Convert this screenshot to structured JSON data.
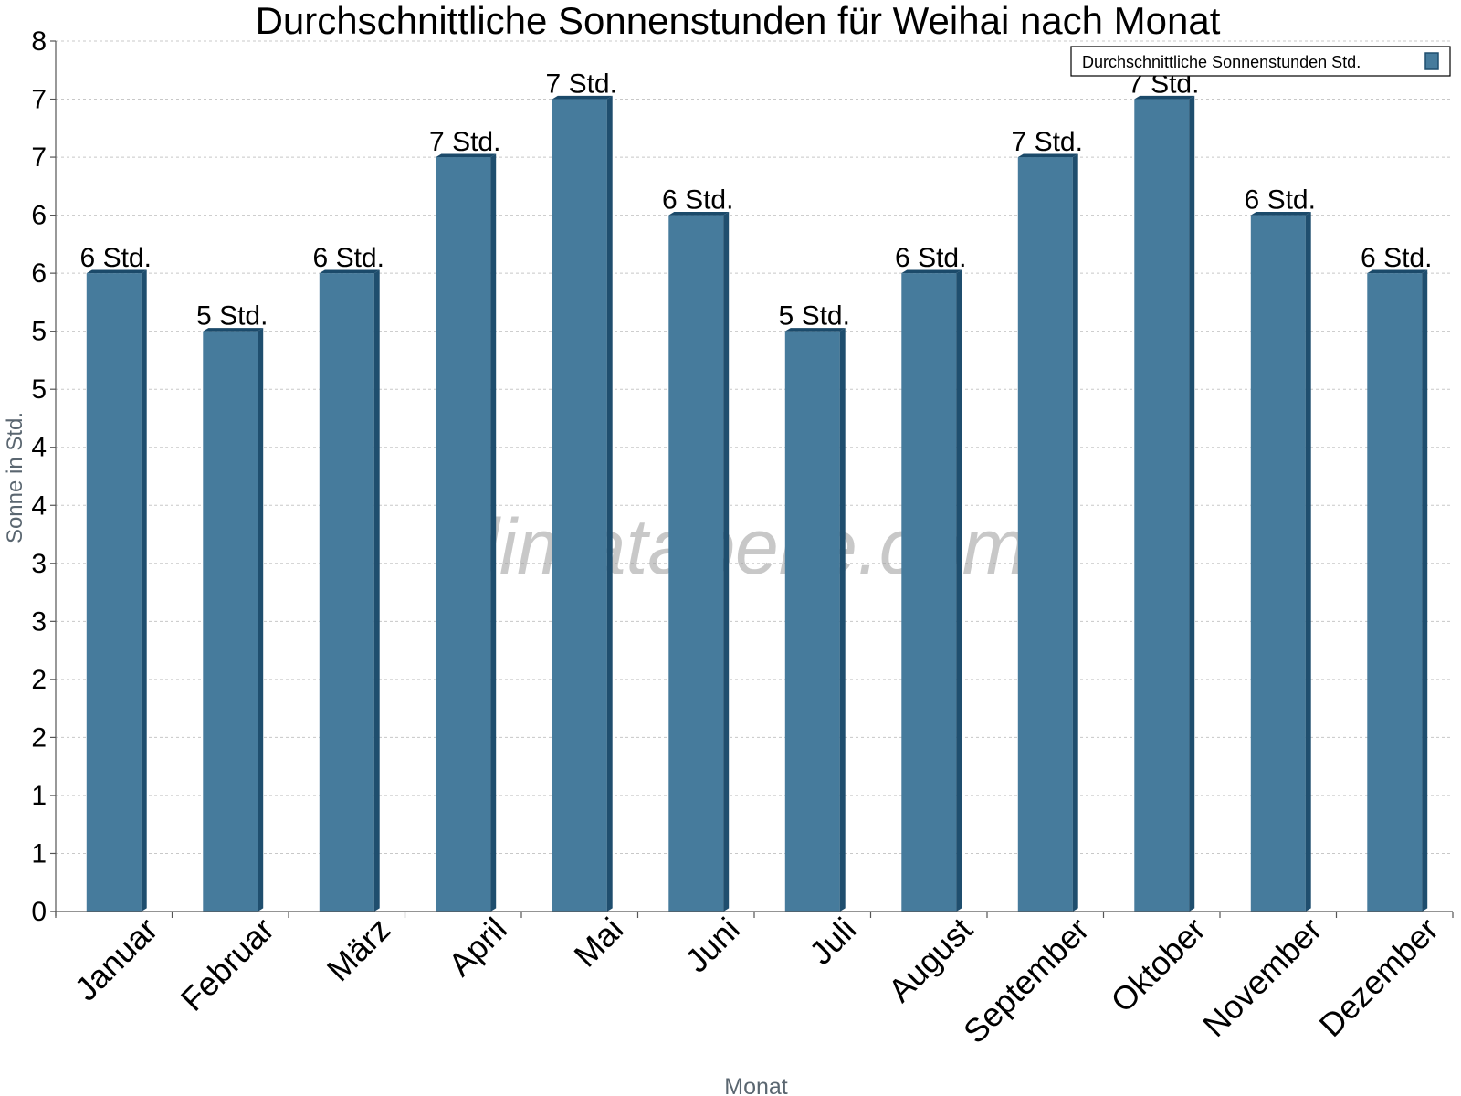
{
  "colors": {
    "bar_front": "#467b9c",
    "bar_side": "#1f4e6e",
    "bar_top": "#1b4a6a",
    "grid": "#c8c8c8",
    "axis": "#555555",
    "axis_title": "#5a6670"
  },
  "watermark": "klimatabelle.com",
  "chart_data": {
    "type": "bar",
    "title": "Durchschnittliche Sonnenstunden für Weihai nach Monat",
    "xlabel": "Monat",
    "ylabel": "Sonne in Std.",
    "ylim": [
      0,
      7.5
    ],
    "y_ticks": [
      0,
      0.5,
      1,
      1.5,
      2,
      2.5,
      3,
      3.5,
      4,
      4.5,
      5,
      5.5,
      6,
      6.5,
      7,
      7.5
    ],
    "y_tick_labels": [
      "0",
      "1",
      "1",
      "2",
      "2",
      "3",
      "3",
      "4",
      "4",
      "5",
      "5",
      "6",
      "6",
      "7",
      "7",
      "8"
    ],
    "grid": true,
    "legend_position": "top-right",
    "categories": [
      "Januar",
      "Februar",
      "März",
      "April",
      "Mai",
      "Juni",
      "Juli",
      "August",
      "September",
      "Oktober",
      "November",
      "Dezember"
    ],
    "series": [
      {
        "name": "Durchschnittliche Sonnenstunden Std.",
        "values": [
          5.5,
          5.0,
          5.5,
          6.5,
          7.0,
          6.0,
          5.0,
          5.5,
          6.5,
          7.0,
          6.0,
          5.5
        ],
        "data_labels": [
          "6 Std.",
          "5 Std.",
          "6 Std.",
          "7 Std.",
          "7 Std.",
          "6 Std.",
          "5 Std.",
          "6 Std.",
          "7 Std.",
          "7 Std.",
          "6 Std.",
          "6 Std."
        ]
      }
    ]
  }
}
